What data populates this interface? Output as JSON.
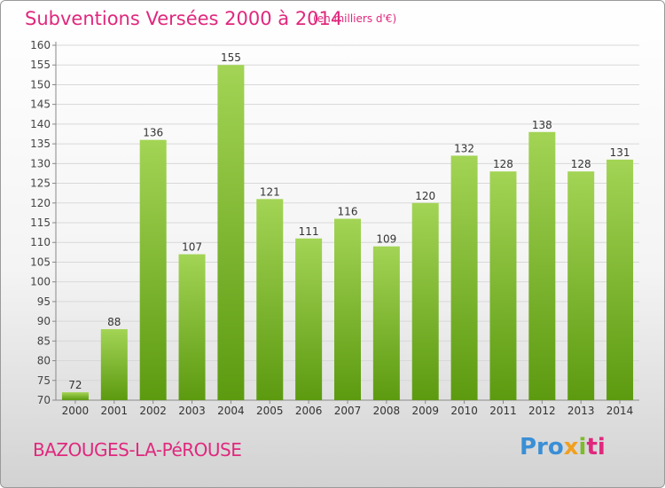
{
  "header": {
    "title": "Subventions Versées 2000 à 2014",
    "unit": "(en milliers d'€)"
  },
  "footer": {
    "commune": "BAZOUGES-LA-PéROUSE",
    "logo": "Proxiti"
  },
  "colors": {
    "accent": "#e0287d",
    "bar_top": "#a3d455",
    "bar_bottom": "#5c9a10",
    "grid": "#d8d8d8"
  },
  "chart_data": {
    "type": "bar",
    "categories": [
      "2000",
      "2001",
      "2002",
      "2003",
      "2004",
      "2005",
      "2006",
      "2007",
      "2008",
      "2009",
      "2010",
      "2011",
      "2012",
      "2013",
      "2014"
    ],
    "values": [
      72,
      88,
      136,
      107,
      155,
      121,
      111,
      116,
      109,
      120,
      132,
      128,
      138,
      128,
      131
    ],
    "title": "Subventions Versées 2000 à 2014",
    "subtitle": "(en milliers d'€)",
    "xlabel": "",
    "ylabel": "",
    "ylim": [
      70,
      160
    ],
    "ytick_step": 5,
    "grid": true,
    "data_labels": true
  }
}
